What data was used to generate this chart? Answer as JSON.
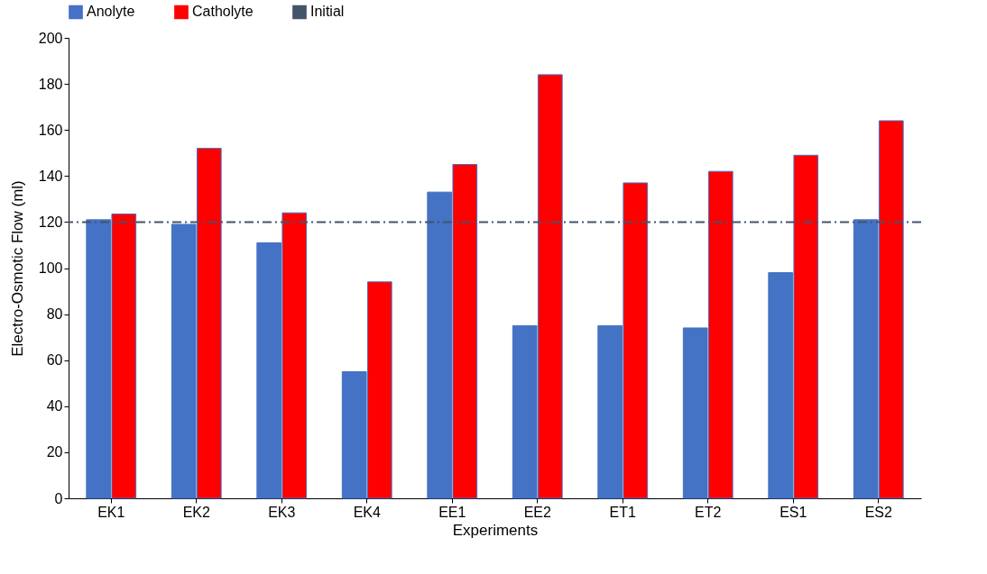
{
  "chart_data": {
    "type": "bar",
    "xlabel": "Experiments",
    "ylabel": "Electro-Osmotic Flow (ml)",
    "categories": [
      "EK1",
      "EK2",
      "EK3",
      "EK4",
      "EE1",
      "EE2",
      "ET1",
      "ET2",
      "ES1",
      "ES2"
    ],
    "series": [
      {
        "name": "Anolyte",
        "color": "#4472c4",
        "values": [
          121,
          119,
          111,
          55,
          133,
          75,
          75,
          74,
          98,
          121
        ]
      },
      {
        "name": "Catholyte",
        "color": "#ff0000",
        "values": [
          123.5,
          152,
          124,
          94,
          145,
          184,
          137,
          142,
          149,
          164
        ]
      }
    ],
    "ref_lines": [
      {
        "axis": "y",
        "value": 120,
        "label": "Initial",
        "color": "#44546a",
        "line_style": "dashed"
      }
    ],
    "ylim": [
      0,
      200
    ],
    "yticks": [
      0,
      20,
      40,
      60,
      80,
      100,
      120,
      140,
      160,
      180,
      200
    ],
    "grid": false,
    "legend": "top"
  }
}
